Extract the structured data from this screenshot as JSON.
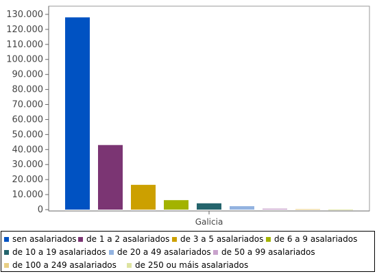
{
  "chart_data": {
    "type": "bar",
    "categories": [
      "Galicia"
    ],
    "series": [
      {
        "name": "sen asalariados",
        "values": [
          128000
        ],
        "color": "#0052C2"
      },
      {
        "name": "de 1 a 2 asalariados",
        "values": [
          43000
        ],
        "color": "#7B3573"
      },
      {
        "name": "de 3 a 5 asalariados",
        "values": [
          16500
        ],
        "color": "#CCA000"
      },
      {
        "name": "de 6 a 9 asalariados",
        "values": [
          6300
        ],
        "color": "#A3B300"
      },
      {
        "name": "de 10 a 19 asalariados",
        "values": [
          4200
        ],
        "color": "#24646C"
      },
      {
        "name": "de 20 a 49 asalariados",
        "values": [
          2300
        ],
        "color": "#93B3E0"
      },
      {
        "name": "de 50 a 99 asalariados",
        "values": [
          650
        ],
        "color": "#C9A3CC"
      },
      {
        "name": "de 100 a 249 asalariados",
        "values": [
          350
        ],
        "color": "#E8CF85"
      },
      {
        "name": "de 250 ou máis asalariados",
        "values": [
          150
        ],
        "color": "#DDE3A0"
      }
    ],
    "yticks": [
      "0",
      "10.000",
      "20.000",
      "30.000",
      "40.000",
      "50.000",
      "60.000",
      "70.000",
      "80.000",
      "90.000",
      "100.000",
      "110.000",
      "120.000",
      "130.000"
    ],
    "ylim": [
      0,
      135000
    ],
    "title": "",
    "xlabel": "",
    "ylabel": "",
    "grid": false,
    "legend_position": "bottom"
  }
}
